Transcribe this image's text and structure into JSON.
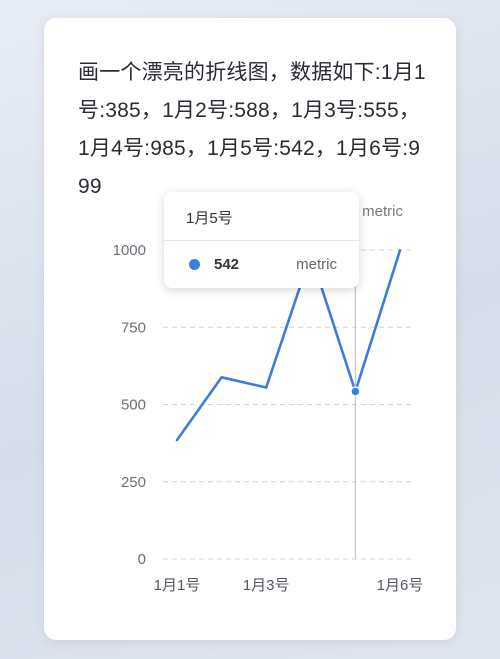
{
  "prompt_text": "画一个漂亮的折线图，数据如下:1月1号:385，1月2号:588，1月3号:555，1月4号:985，1月5号:542，1月6号:999",
  "chart_data": {
    "type": "line",
    "categories": [
      "1月1号",
      "1月2号",
      "1月3号",
      "1月4号",
      "1月5号",
      "1月6号"
    ],
    "x_tick_labels": [
      "1月1号",
      "1月3号",
      "1月6号"
    ],
    "series": [
      {
        "name": "metric",
        "values": [
          385,
          588,
          555,
          985,
          542,
          999
        ],
        "color": "#3b7ddd"
      }
    ],
    "ylim": [
      0,
      1000
    ],
    "yticks": [
      0,
      250,
      500,
      750,
      1000
    ],
    "grid": "horizontal dashed",
    "legend": "top-right"
  },
  "tooltip": {
    "title": "1月5号",
    "value": "542",
    "series": "metric",
    "index": 4
  }
}
